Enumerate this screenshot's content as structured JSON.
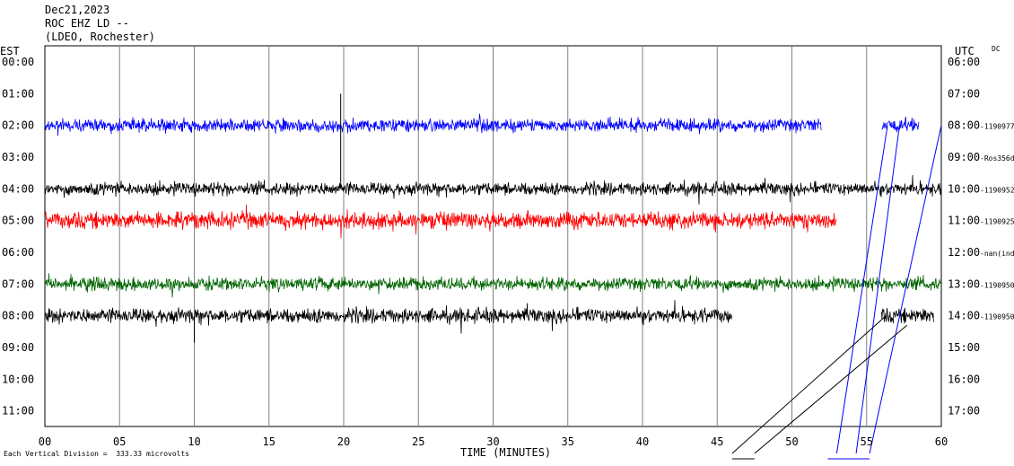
{
  "header": {
    "date": "Dec21,2023",
    "station": "ROC EHZ LD --",
    "network": "(LDEO, Rochester)"
  },
  "footer": {
    "scale_note": "Each Vertical Division =  333.33 microvolts"
  },
  "chart_data": {
    "type": "line",
    "title": "",
    "xlabel": "TIME (MINUTES)",
    "left_axis_label": "EST",
    "right_axis_label": "UTC",
    "corner_label": "DC",
    "xlim": [
      0,
      60
    ],
    "x_ticks": [
      "00",
      "05",
      "10",
      "15",
      "20",
      "25",
      "30",
      "35",
      "40",
      "45",
      "50",
      "55",
      "60"
    ],
    "est_ticks": [
      "00:00",
      "01:00",
      "02:00",
      "03:00",
      "04:00",
      "05:00",
      "06:00",
      "07:00",
      "08:00",
      "09:00",
      "10:00",
      "11:00"
    ],
    "utc_ticks": [
      "06:00",
      "07:00",
      "08:00",
      "09:00",
      "10:00",
      "11:00",
      "12:00",
      "13:00",
      "14:00",
      "15:00",
      "16:00",
      "17:00"
    ],
    "row_values": [
      "",
      "",
      "-1190977",
      "-Ros356d",
      "-1190952",
      "-1190925",
      "-nan(ind",
      "-1190950",
      "-1190950",
      "",
      "",
      ""
    ],
    "grid": true,
    "series": [
      {
        "row": 2,
        "color": "#0000ff",
        "segments": [
          [
            0,
            52
          ],
          [
            56,
            58.5
          ]
        ],
        "amplitude": 7
      },
      {
        "row": 4,
        "color": "#000000",
        "segments": [
          [
            0,
            60
          ]
        ],
        "amplitude": 7
      },
      {
        "row": 5,
        "color": "#ff0000",
        "segments": [
          [
            0,
            53
          ]
        ],
        "amplitude": 9
      },
      {
        "row": 7,
        "color": "#006400",
        "segments": [
          [
            0,
            60
          ]
        ],
        "amplitude": 7
      },
      {
        "row": 8,
        "color": "#000000",
        "segments": [
          [
            0,
            46
          ],
          [
            56,
            59.5
          ]
        ],
        "amplitude": 8
      }
    ]
  }
}
